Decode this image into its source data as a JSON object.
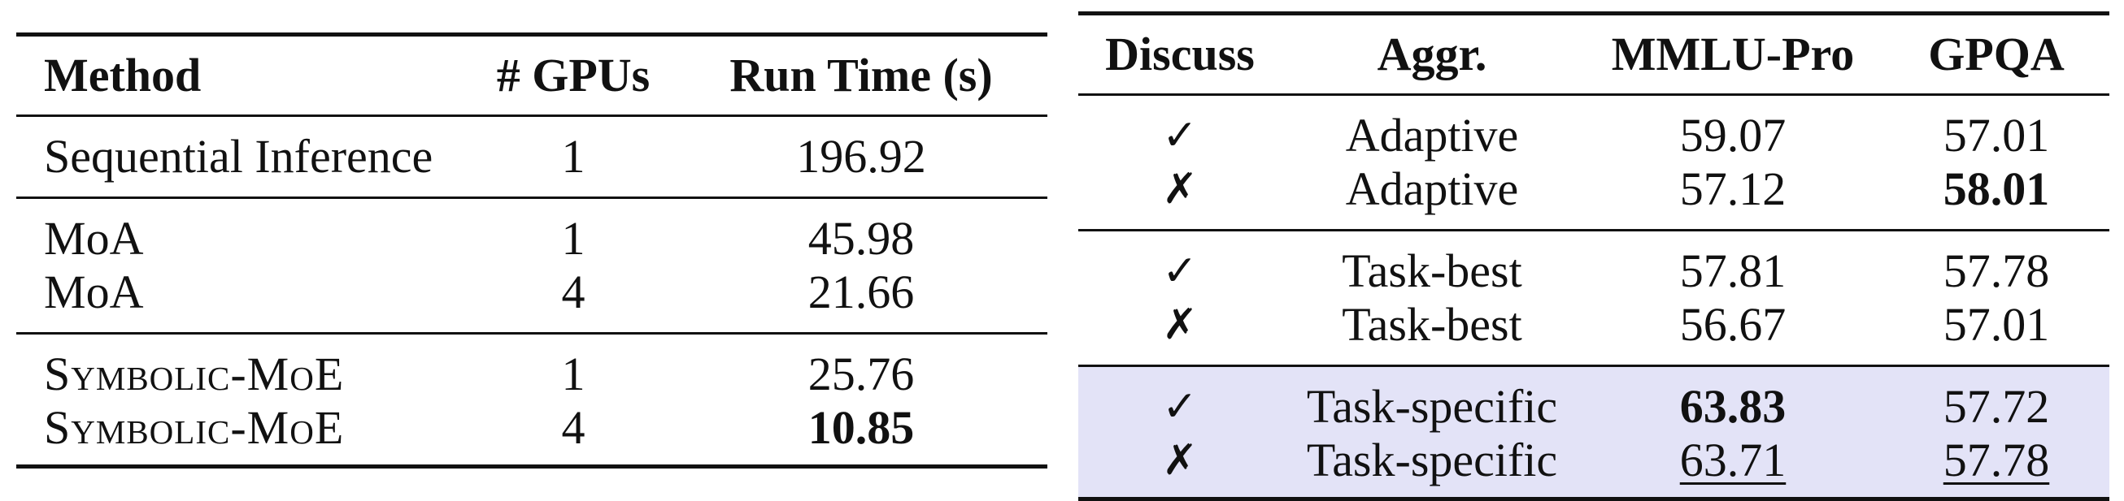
{
  "left_table": {
    "headers": [
      "Method",
      "# GPUs",
      "Run Time (s)"
    ],
    "rows": [
      {
        "method": "Sequential Inference",
        "gpus": "1",
        "time": "196.92"
      },
      {
        "method": "MoA",
        "gpus": "1",
        "time": "45.98"
      },
      {
        "method": "MoA",
        "gpus": "4",
        "time": "21.66"
      },
      {
        "method": "Symbolic-MoE",
        "gpus": "1",
        "time": "25.76"
      },
      {
        "method": "Symbolic-MoE",
        "gpus": "4",
        "time": "10.85"
      }
    ]
  },
  "right_table": {
    "headers": [
      "Discuss",
      "Aggr.",
      "MMLU-Pro",
      "GPQA"
    ],
    "rows": [
      {
        "discuss": "✓",
        "aggr": "Adaptive",
        "mmlu": "59.07",
        "gpqa": "57.01"
      },
      {
        "discuss": "✗",
        "aggr": "Adaptive",
        "mmlu": "57.12",
        "gpqa": "58.01"
      },
      {
        "discuss": "✓",
        "aggr": "Task-best",
        "mmlu": "57.81",
        "gpqa": "57.78"
      },
      {
        "discuss": "✗",
        "aggr": "Task-best",
        "mmlu": "56.67",
        "gpqa": "57.01"
      },
      {
        "discuss": "✓",
        "aggr": "Task-specific",
        "mmlu": "63.83",
        "gpqa": "57.72"
      },
      {
        "discuss": "✗",
        "aggr": "Task-specific",
        "mmlu": "63.71",
        "gpqa": "57.78"
      }
    ],
    "highlight_color": "#e3e3f7"
  }
}
